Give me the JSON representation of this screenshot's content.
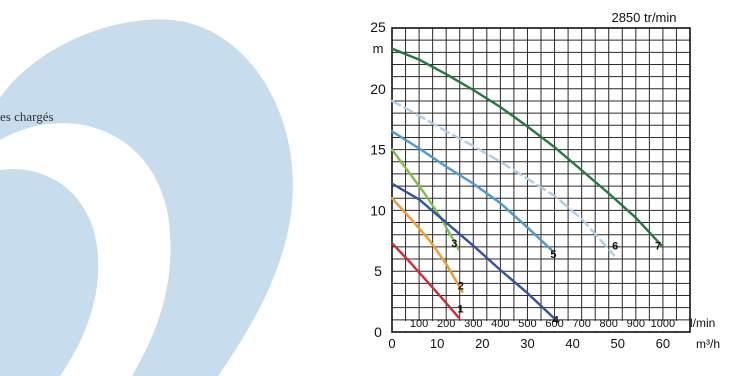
{
  "side_panel": {
    "text": "es chargés",
    "shape_color": "#c7dced"
  },
  "chart_data": {
    "type": "line",
    "title": "2850 tr/min",
    "ylabel": "m",
    "x_primary": {
      "unit": "l/min",
      "range": [
        0,
        1100
      ],
      "ticks": [
        100,
        200,
        300,
        400,
        500,
        600,
        700,
        800,
        900,
        1000
      ],
      "grid_step": 50
    },
    "x_secondary": {
      "unit": "m³/h",
      "ticks": [
        0,
        10,
        20,
        30,
        40,
        50,
        60
      ],
      "note": "1 m³/h = 16.6667 l/min"
    },
    "ylim": [
      0,
      25
    ],
    "y_ticks": [
      0,
      5,
      10,
      15,
      20,
      25
    ],
    "y_grid_step": 1,
    "grid": true,
    "series": [
      {
        "name": "1",
        "color": "#d6282e",
        "dashed": false,
        "label_anchor": [
          253,
          1.6
        ],
        "points": [
          [
            0,
            7.3
          ],
          [
            60,
            5.9
          ],
          [
            120,
            4.4
          ],
          [
            180,
            2.9
          ],
          [
            246,
            1.2
          ]
        ]
      },
      {
        "name": "2",
        "color": "#f39a2b",
        "dashed": false,
        "label_anchor": [
          254,
          3.5
        ],
        "points": [
          [
            0,
            11.0
          ],
          [
            70,
            9.3
          ],
          [
            140,
            7.5
          ],
          [
            200,
            5.6
          ],
          [
            260,
            3.3
          ]
        ]
      },
      {
        "name": "3",
        "color": "#7cc143",
        "dashed": false,
        "label_anchor": [
          230,
          7.0
        ],
        "points": [
          [
            0,
            15.0
          ],
          [
            60,
            13.2
          ],
          [
            120,
            11.4
          ],
          [
            180,
            9.4
          ],
          [
            246,
            6.8
          ]
        ]
      },
      {
        "name": "4",
        "color": "#2f53a8",
        "dashed": false,
        "label_anchor": [
          604,
          0.7
        ],
        "points": [
          [
            0,
            12.2
          ],
          [
            100,
            10.9
          ],
          [
            200,
            9.0
          ],
          [
            300,
            7.1
          ],
          [
            400,
            5.1
          ],
          [
            500,
            3.2
          ],
          [
            600,
            1.1
          ]
        ]
      },
      {
        "name": "5",
        "color": "#4a9ad6",
        "dashed": false,
        "label_anchor": [
          596,
          6.1
        ],
        "points": [
          [
            0,
            16.5
          ],
          [
            100,
            15.1
          ],
          [
            200,
            13.6
          ],
          [
            300,
            12.2
          ],
          [
            400,
            10.6
          ],
          [
            500,
            8.6
          ],
          [
            596,
            6.6
          ]
        ]
      },
      {
        "name": "6",
        "color": "#aecde8",
        "dashed": true,
        "label_anchor": [
          824,
          6.8
        ],
        "points": [
          [
            0,
            19.0
          ],
          [
            100,
            17.8
          ],
          [
            200,
            16.5
          ],
          [
            300,
            15.3
          ],
          [
            400,
            14.0
          ],
          [
            500,
            12.6
          ],
          [
            600,
            11.2
          ],
          [
            700,
            9.3
          ],
          [
            820,
            6.3
          ]
        ]
      },
      {
        "name": "7",
        "color": "#237a3f",
        "dashed": false,
        "label_anchor": [
          982,
          6.8
        ],
        "points": [
          [
            0,
            23.3
          ],
          [
            100,
            22.4
          ],
          [
            200,
            21.2
          ],
          [
            300,
            19.9
          ],
          [
            400,
            18.5
          ],
          [
            500,
            16.9
          ],
          [
            600,
            15.2
          ],
          [
            700,
            13.3
          ],
          [
            800,
            11.4
          ],
          [
            900,
            9.4
          ],
          [
            1000,
            7.0
          ]
        ]
      }
    ]
  }
}
